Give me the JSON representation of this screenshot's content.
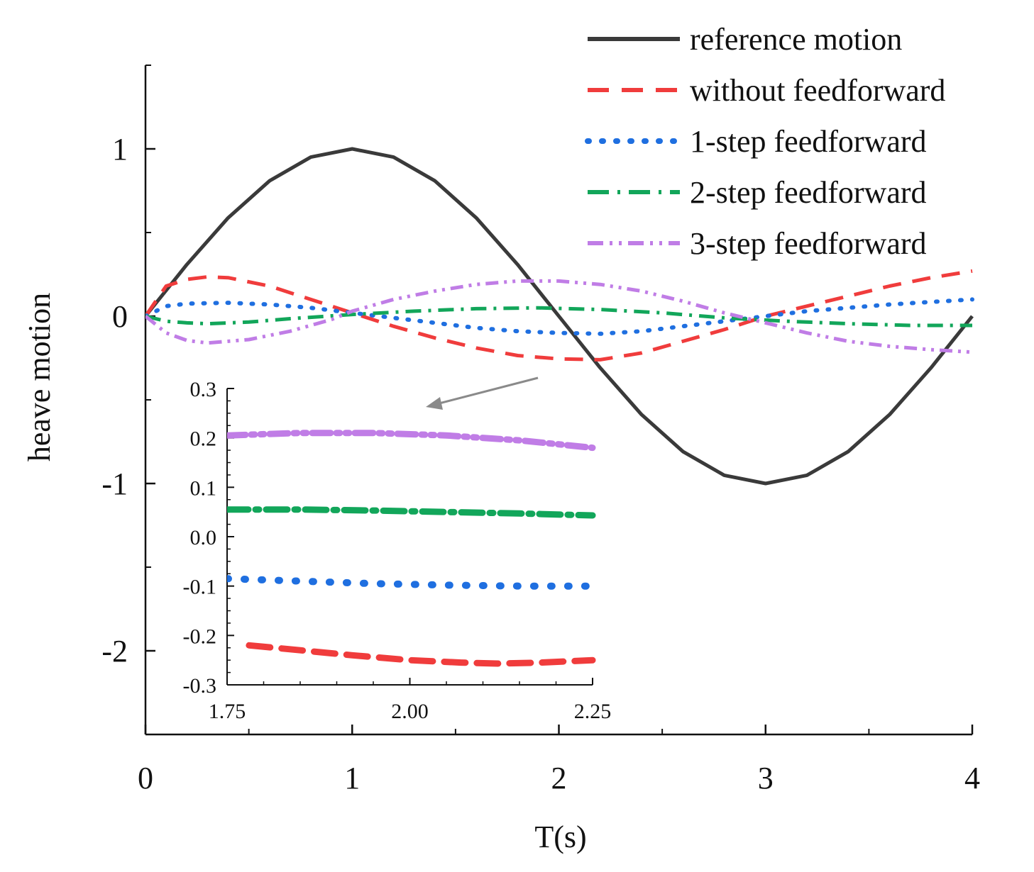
{
  "chart_data": [
    {
      "type": "line",
      "role": "main",
      "xlabel": "T(s)",
      "ylabel": "heave motion",
      "xlim": [
        0,
        4
      ],
      "ylim": [
        -2.5,
        1.5
      ],
      "xticks": [
        0,
        1,
        2,
        3,
        4
      ],
      "xtick_labels": [
        "0",
        "1",
        "2",
        "3",
        "4"
      ],
      "yticks": [
        -2,
        -1,
        0,
        1
      ],
      "ytick_labels": [
        "-2",
        "-1",
        "0",
        "1"
      ],
      "legend_position": "top-right",
      "grid": false,
      "series": [
        {
          "name": "reference motion",
          "color": "#3a3a3a",
          "style": "solid",
          "x": [
            0,
            0.2,
            0.4,
            0.6,
            0.8,
            1.0,
            1.2,
            1.4,
            1.6,
            1.8,
            2.0,
            2.2,
            2.4,
            2.6,
            2.8,
            3.0,
            3.2,
            3.4,
            3.6,
            3.8,
            4.0
          ],
          "y": [
            0,
            0.309,
            0.588,
            0.809,
            0.951,
            1.0,
            0.951,
            0.809,
            0.588,
            0.309,
            0,
            -0.309,
            -0.588,
            -0.809,
            -0.951,
            -1.0,
            -0.951,
            -0.809,
            -0.588,
            -0.309,
            0
          ]
        },
        {
          "name": "without feedforward",
          "color": "#f03c3c",
          "style": "dash",
          "x": [
            0,
            0.1,
            0.2,
            0.3,
            0.4,
            0.6,
            0.8,
            1.0,
            1.2,
            1.4,
            1.6,
            1.8,
            2.0,
            2.2,
            2.4,
            2.6,
            2.8,
            3.0,
            3.2,
            3.4,
            3.6,
            3.8,
            4.0
          ],
          "y": [
            0,
            0.18,
            0.22,
            0.235,
            0.23,
            0.18,
            0.1,
            0.02,
            -0.06,
            -0.13,
            -0.19,
            -0.235,
            -0.255,
            -0.26,
            -0.22,
            -0.15,
            -0.08,
            0.0,
            0.06,
            0.12,
            0.18,
            0.23,
            0.27
          ]
        },
        {
          "name": "1-step feedforward",
          "color": "#1f6fe0",
          "style": "dot",
          "x": [
            0,
            0.1,
            0.2,
            0.4,
            0.6,
            0.8,
            1.0,
            1.2,
            1.4,
            1.6,
            1.8,
            2.0,
            2.2,
            2.4,
            2.6,
            2.8,
            3.0,
            3.2,
            3.4,
            3.6,
            3.8,
            4.0
          ],
          "y": [
            0,
            0.06,
            0.075,
            0.08,
            0.07,
            0.05,
            0.02,
            -0.01,
            -0.04,
            -0.07,
            -0.09,
            -0.1,
            -0.105,
            -0.09,
            -0.06,
            -0.03,
            0.0,
            0.03,
            0.05,
            0.07,
            0.085,
            0.1
          ]
        },
        {
          "name": "2-step feedforward",
          "color": "#12a65a",
          "style": "dashdot",
          "x": [
            0,
            0.1,
            0.2,
            0.3,
            0.5,
            0.7,
            1.0,
            1.3,
            1.6,
            1.9,
            2.2,
            2.5,
            2.8,
            3.1,
            3.4,
            3.7,
            4.0
          ],
          "y": [
            0,
            -0.03,
            -0.04,
            -0.045,
            -0.035,
            -0.015,
            0.01,
            0.03,
            0.045,
            0.05,
            0.04,
            0.02,
            -0.01,
            -0.03,
            -0.045,
            -0.055,
            -0.055
          ]
        },
        {
          "name": "3-step feedforward",
          "color": "#c07de6",
          "style": "dashdotdot",
          "x": [
            0,
            0.1,
            0.2,
            0.3,
            0.5,
            0.7,
            0.9,
            1.0,
            1.2,
            1.4,
            1.6,
            1.8,
            2.0,
            2.2,
            2.4,
            2.6,
            2.8,
            3.0,
            3.2,
            3.4,
            3.6,
            3.8,
            4.0
          ],
          "y": [
            0,
            -0.1,
            -0.145,
            -0.16,
            -0.14,
            -0.09,
            -0.02,
            0.03,
            0.1,
            0.15,
            0.19,
            0.21,
            0.21,
            0.19,
            0.15,
            0.09,
            0.02,
            -0.04,
            -0.1,
            -0.15,
            -0.18,
            -0.2,
            -0.215
          ]
        }
      ]
    },
    {
      "type": "line",
      "role": "inset",
      "zoom_of": "main",
      "xlabel": "",
      "ylabel": "",
      "xlim": [
        1.75,
        2.25
      ],
      "ylim": [
        -0.3,
        0.3
      ],
      "xticks": [
        1.75,
        2.0,
        2.25
      ],
      "xtick_labels": [
        "1.75",
        "2.00",
        "2.25"
      ],
      "yticks": [
        -0.3,
        -0.2,
        -0.1,
        0.0,
        0.1,
        0.2,
        0.3
      ],
      "ytick_labels": [
        "-0.3",
        "-0.2",
        "-0.1",
        "0.0",
        "0.1",
        "0.2",
        "0.3"
      ],
      "series": [
        {
          "name": "without feedforward",
          "color": "#f03c3c",
          "style": "dash",
          "x": [
            1.78,
            1.85,
            1.92,
            2.0,
            2.07,
            2.12,
            2.18,
            2.25
          ],
          "y": [
            -0.22,
            -0.23,
            -0.24,
            -0.25,
            -0.255,
            -0.257,
            -0.255,
            -0.25
          ]
        },
        {
          "name": "1-step feedforward",
          "color": "#1f6fe0",
          "style": "dot",
          "x": [
            1.75,
            1.85,
            1.95,
            2.05,
            2.15,
            2.25
          ],
          "y": [
            -0.085,
            -0.09,
            -0.095,
            -0.098,
            -0.1,
            -0.1
          ]
        },
        {
          "name": "2-step feedforward",
          "color": "#12a65a",
          "style": "dashdot",
          "x": [
            1.75,
            1.85,
            1.95,
            2.05,
            2.15,
            2.25
          ],
          "y": [
            0.055,
            0.055,
            0.053,
            0.05,
            0.047,
            0.043
          ]
        },
        {
          "name": "3-step feedforward",
          "color": "#c07de6",
          "style": "dashdotdot",
          "x": [
            1.75,
            1.85,
            1.95,
            2.05,
            2.15,
            2.25
          ],
          "y": [
            0.205,
            0.21,
            0.21,
            0.205,
            0.195,
            0.18
          ]
        }
      ]
    }
  ]
}
